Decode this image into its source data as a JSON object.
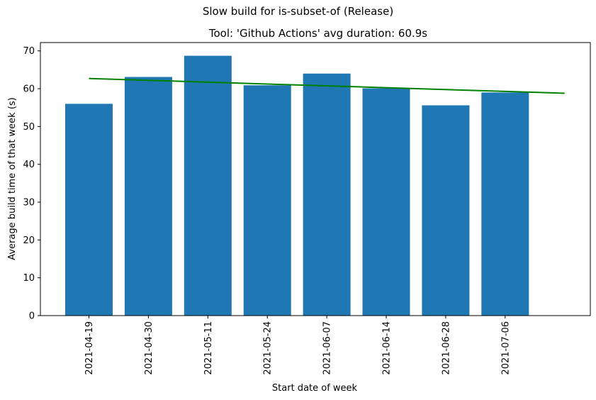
{
  "figure": {
    "suptitle": "Slow build for is-subset-of (Release)"
  },
  "chart_data": {
    "type": "bar",
    "title": "Tool: 'Github Actions' avg duration: 60.9s",
    "xlabel": "Start date of week",
    "ylabel": "Average build time of that week (s)",
    "categories": [
      "2021-04-19",
      "2021-04-30",
      "2021-05-11",
      "2021-05-24",
      "2021-06-07",
      "2021-06-14",
      "2021-06-28",
      "2021-07-06"
    ],
    "values": [
      56,
      63.1,
      68.7,
      60.9,
      64,
      60.1,
      55.6,
      59
    ],
    "ylim": [
      0,
      72.2
    ],
    "yticks": [
      0,
      10,
      20,
      30,
      40,
      50,
      60,
      70
    ],
    "bar_color": "#1f77b4",
    "trend_line": {
      "color": "#008000",
      "x_start_index": 0,
      "x_end_index": 8,
      "y_start": 62.7,
      "y_end": 58.8
    },
    "grid": false,
    "legend": "none"
  }
}
